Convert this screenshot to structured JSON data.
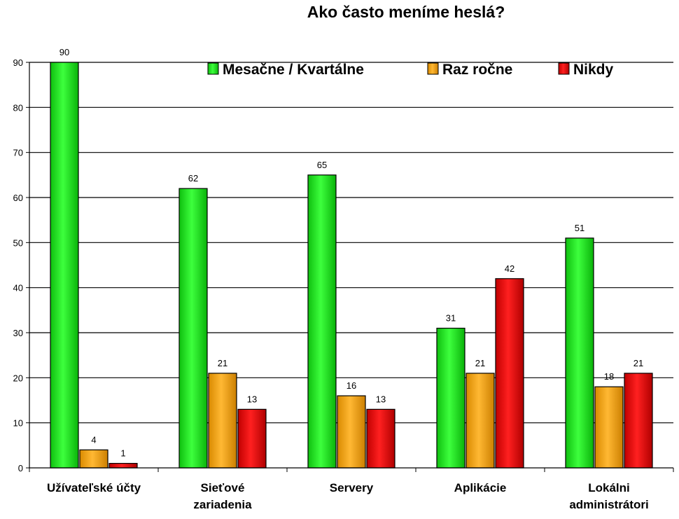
{
  "chart_data": {
    "type": "bar",
    "title": "Ako často meníme heslá?",
    "xlabel": "",
    "ylabel": "",
    "ylim": [
      0,
      90
    ],
    "yticks": [
      0,
      10,
      20,
      30,
      40,
      50,
      60,
      70,
      80,
      90
    ],
    "grid": true,
    "legend": "top-right",
    "categories": [
      [
        "Užívateľské účty"
      ],
      [
        "Sieťové",
        "zariadenia"
      ],
      [
        "Servery"
      ],
      [
        "Aplikácie"
      ],
      [
        "Lokálni",
        "administrátori"
      ]
    ],
    "series": [
      {
        "name": "Mesačne / Kvartálne",
        "color": "#1ee61e",
        "values": [
          90,
          62,
          65,
          31,
          51
        ]
      },
      {
        "name": "Raz ročne",
        "color": "#f4a000",
        "values": [
          4,
          21,
          16,
          21,
          18
        ]
      },
      {
        "name": "Nikdy",
        "color": "#e20000",
        "values": [
          1,
          13,
          13,
          42,
          21
        ]
      }
    ]
  }
}
